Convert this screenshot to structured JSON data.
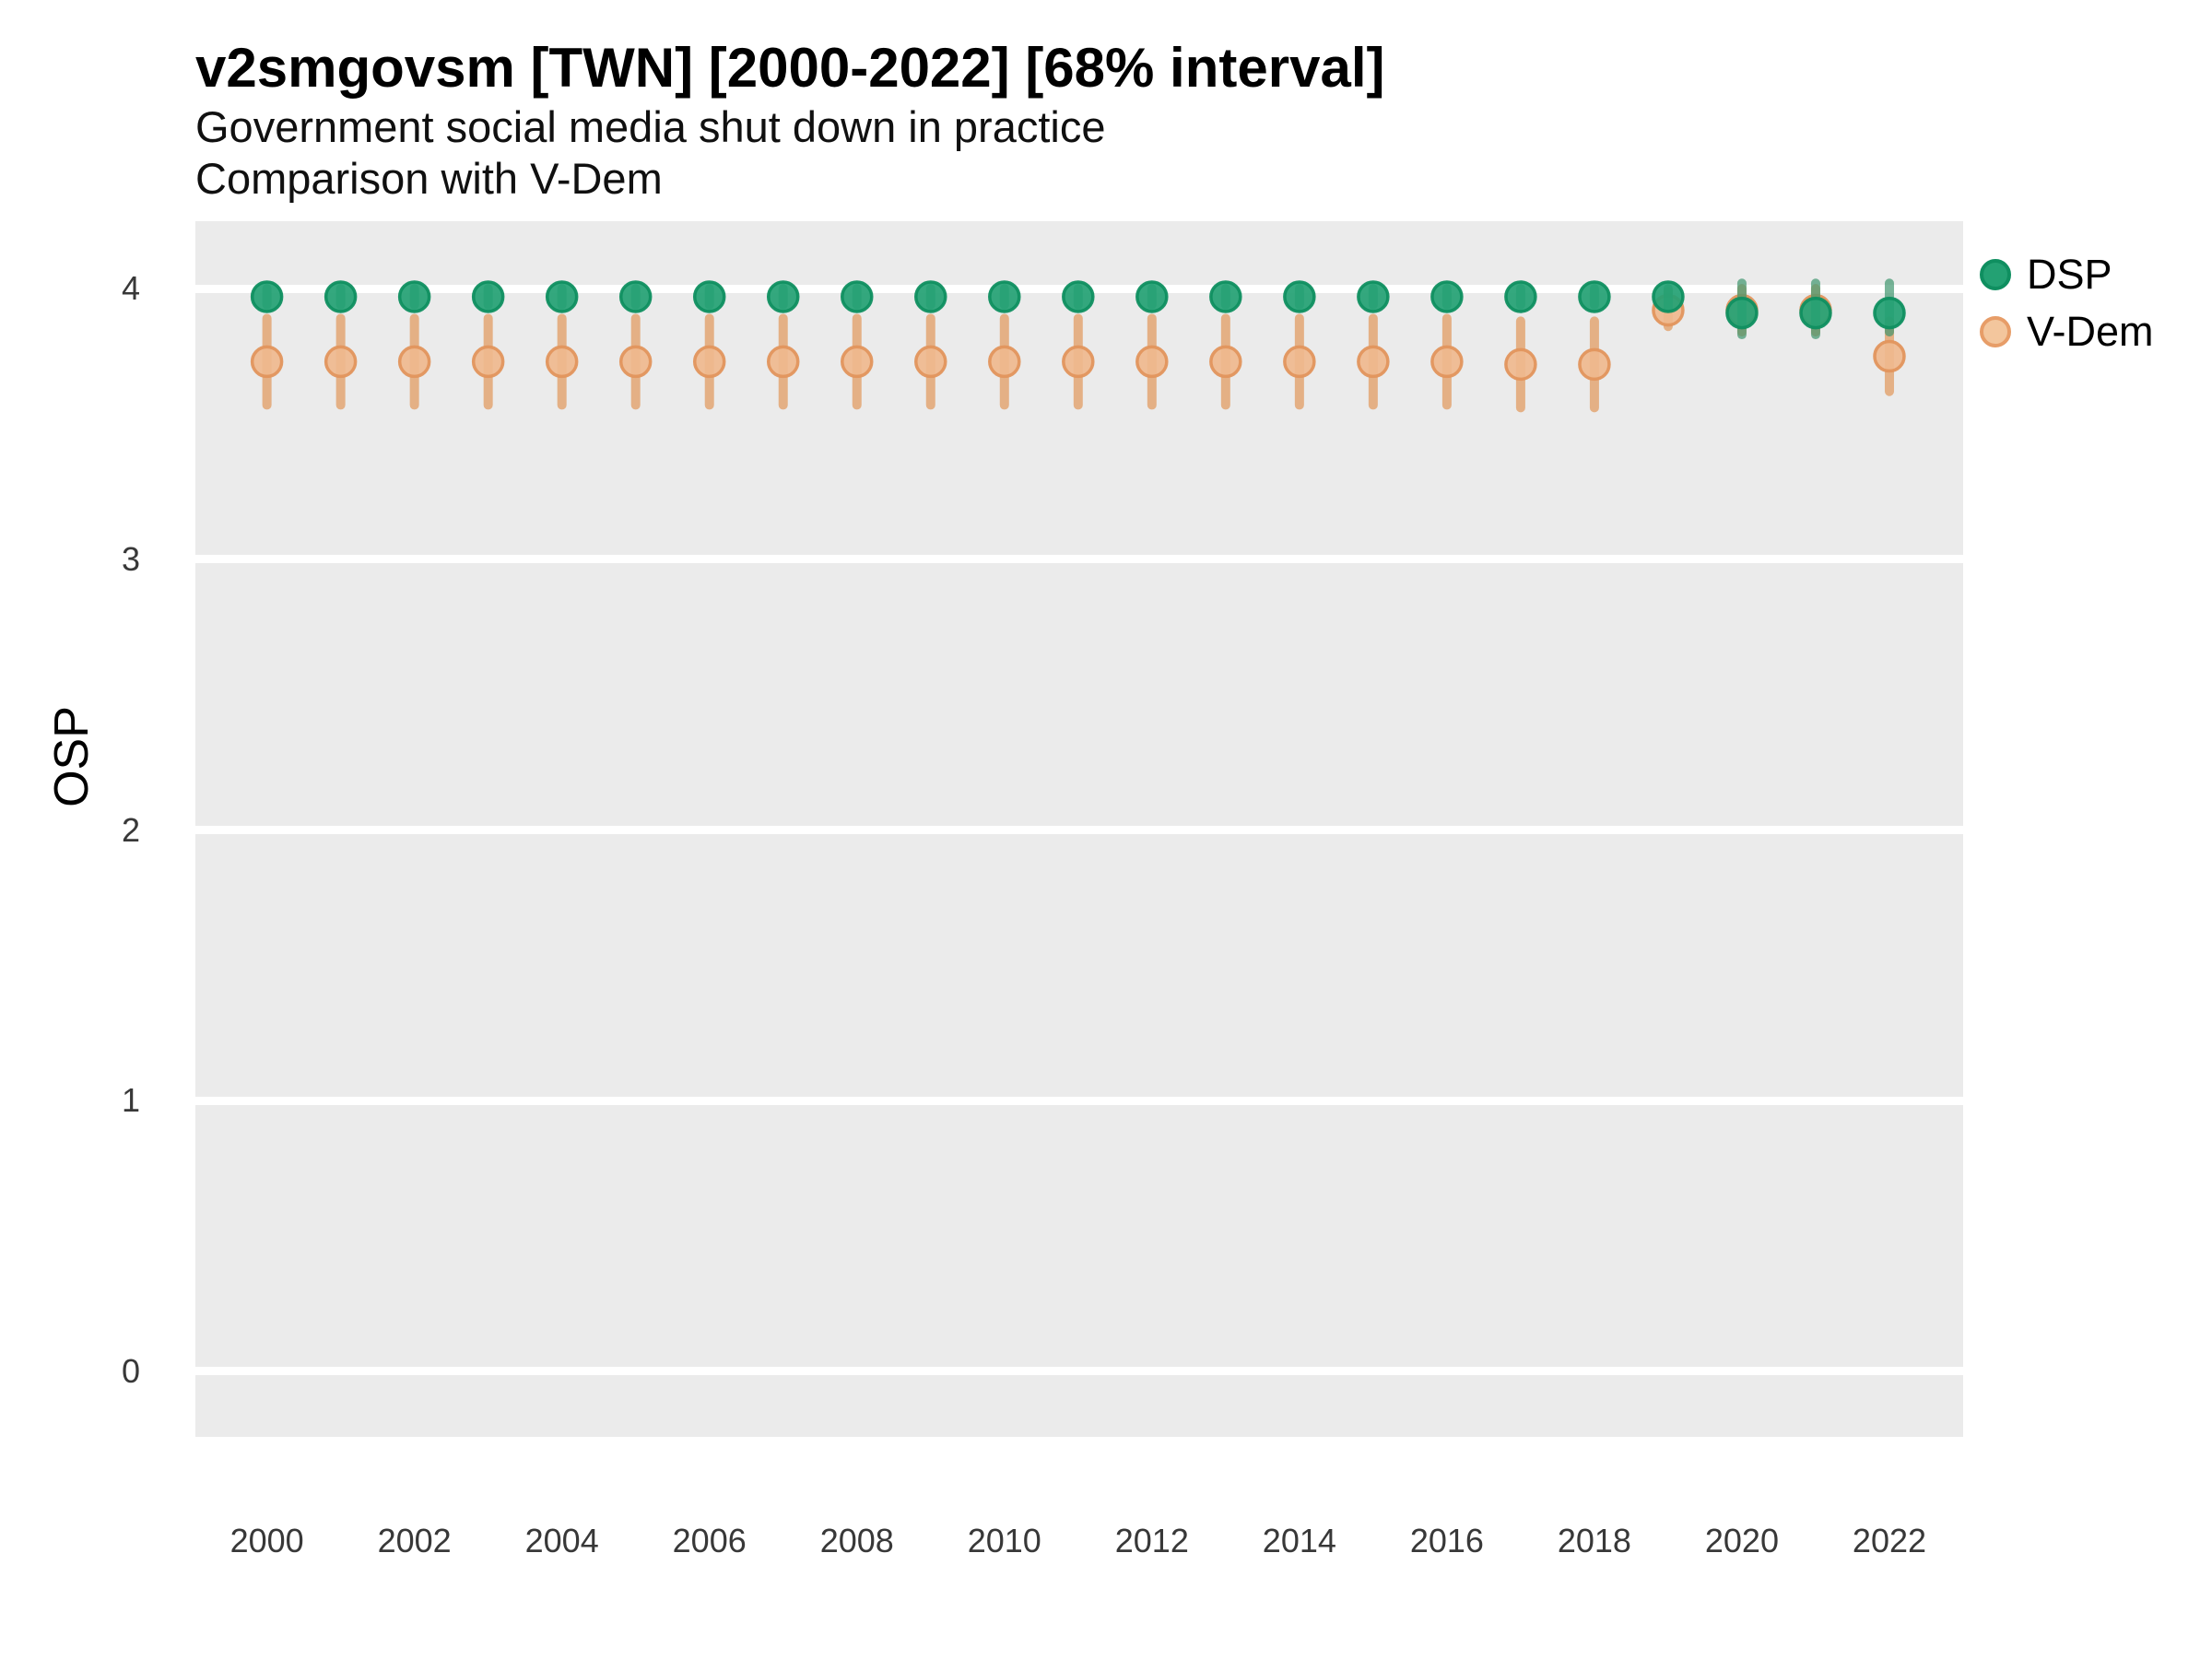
{
  "chart_data": {
    "type": "scatter",
    "title": "v2smgovsm [TWN] [2000-2022] [68% interval]",
    "subtitle1": "Government social media shut down in practice",
    "subtitle2": "Comparison with V-Dem",
    "ylabel": "OSP",
    "xlim": [
      1999.03,
      2023.0
    ],
    "ylim": [
      -0.242,
      4.249
    ],
    "x_ticks": [
      2000,
      2002,
      2004,
      2006,
      2008,
      2010,
      2012,
      2014,
      2016,
      2018,
      2020,
      2022
    ],
    "y_ticks": [
      4,
      3,
      2,
      1,
      0
    ],
    "grid": "major-horizontal-white-on-gray",
    "panel_background": "#ebebeb",
    "gridline_color": "#ffffff",
    "legend_position": "right",
    "interval_level": "68%",
    "series": [
      {
        "name": "V-Dem",
        "point_fill": "#efb98e",
        "point_stroke": "#e1955d",
        "bar_color": "rgba(226,156,99,0.75)",
        "points": [
          {
            "x": 2000,
            "y": 3.73,
            "lo": 3.57,
            "hi": 3.89
          },
          {
            "x": 2001,
            "y": 3.73,
            "lo": 3.57,
            "hi": 3.89
          },
          {
            "x": 2002,
            "y": 3.73,
            "lo": 3.57,
            "hi": 3.89
          },
          {
            "x": 2003,
            "y": 3.73,
            "lo": 3.57,
            "hi": 3.89
          },
          {
            "x": 2004,
            "y": 3.73,
            "lo": 3.57,
            "hi": 3.89
          },
          {
            "x": 2005,
            "y": 3.73,
            "lo": 3.57,
            "hi": 3.89
          },
          {
            "x": 2006,
            "y": 3.73,
            "lo": 3.57,
            "hi": 3.89
          },
          {
            "x": 2007,
            "y": 3.73,
            "lo": 3.57,
            "hi": 3.89
          },
          {
            "x": 2008,
            "y": 3.73,
            "lo": 3.57,
            "hi": 3.89
          },
          {
            "x": 2009,
            "y": 3.73,
            "lo": 3.57,
            "hi": 3.89
          },
          {
            "x": 2010,
            "y": 3.73,
            "lo": 3.57,
            "hi": 3.89
          },
          {
            "x": 2011,
            "y": 3.73,
            "lo": 3.57,
            "hi": 3.89
          },
          {
            "x": 2012,
            "y": 3.73,
            "lo": 3.57,
            "hi": 3.89
          },
          {
            "x": 2013,
            "y": 3.73,
            "lo": 3.57,
            "hi": 3.89
          },
          {
            "x": 2014,
            "y": 3.73,
            "lo": 3.57,
            "hi": 3.89
          },
          {
            "x": 2015,
            "y": 3.73,
            "lo": 3.57,
            "hi": 3.89
          },
          {
            "x": 2016,
            "y": 3.73,
            "lo": 3.57,
            "hi": 3.89
          },
          {
            "x": 2017,
            "y": 3.72,
            "lo": 3.56,
            "hi": 3.88
          },
          {
            "x": 2018,
            "y": 3.72,
            "lo": 3.56,
            "hi": 3.88
          },
          {
            "x": 2019,
            "y": 3.92,
            "lo": 3.86,
            "hi": 3.99
          },
          {
            "x": 2020,
            "y": 3.92,
            "lo": 3.84,
            "hi": 4.0
          },
          {
            "x": 2021,
            "y": 3.92,
            "lo": 3.84,
            "hi": 4.0
          },
          {
            "x": 2022,
            "y": 3.75,
            "lo": 3.62,
            "hi": 3.88
          }
        ]
      },
      {
        "name": "DSP",
        "point_fill": "#23a173",
        "point_stroke": "#0f8f60",
        "bar_color": "rgba(62,150,110,0.7)",
        "points": [
          {
            "x": 2000,
            "y": 3.97,
            "lo": 3.94,
            "hi": 4.0
          },
          {
            "x": 2001,
            "y": 3.97,
            "lo": 3.94,
            "hi": 4.0
          },
          {
            "x": 2002,
            "y": 3.97,
            "lo": 3.94,
            "hi": 4.0
          },
          {
            "x": 2003,
            "y": 3.97,
            "lo": 3.94,
            "hi": 4.0
          },
          {
            "x": 2004,
            "y": 3.97,
            "lo": 3.94,
            "hi": 4.0
          },
          {
            "x": 2005,
            "y": 3.97,
            "lo": 3.94,
            "hi": 4.0
          },
          {
            "x": 2006,
            "y": 3.97,
            "lo": 3.94,
            "hi": 4.0
          },
          {
            "x": 2007,
            "y": 3.97,
            "lo": 3.94,
            "hi": 4.0
          },
          {
            "x": 2008,
            "y": 3.97,
            "lo": 3.94,
            "hi": 4.0
          },
          {
            "x": 2009,
            "y": 3.97,
            "lo": 3.94,
            "hi": 4.0
          },
          {
            "x": 2010,
            "y": 3.97,
            "lo": 3.94,
            "hi": 4.0
          },
          {
            "x": 2011,
            "y": 3.97,
            "lo": 3.94,
            "hi": 4.0
          },
          {
            "x": 2012,
            "y": 3.97,
            "lo": 3.94,
            "hi": 4.0
          },
          {
            "x": 2013,
            "y": 3.97,
            "lo": 3.94,
            "hi": 4.0
          },
          {
            "x": 2014,
            "y": 3.97,
            "lo": 3.94,
            "hi": 4.0
          },
          {
            "x": 2015,
            "y": 3.97,
            "lo": 3.94,
            "hi": 4.0
          },
          {
            "x": 2016,
            "y": 3.97,
            "lo": 3.94,
            "hi": 4.0
          },
          {
            "x": 2017,
            "y": 3.97,
            "lo": 3.94,
            "hi": 4.0
          },
          {
            "x": 2018,
            "y": 3.97,
            "lo": 3.94,
            "hi": 4.0
          },
          {
            "x": 2019,
            "y": 3.97,
            "lo": 3.93,
            "hi": 4.0
          },
          {
            "x": 2020,
            "y": 3.91,
            "lo": 3.83,
            "hi": 4.02
          },
          {
            "x": 2021,
            "y": 3.91,
            "lo": 3.83,
            "hi": 4.02
          },
          {
            "x": 2022,
            "y": 3.91,
            "lo": 3.84,
            "hi": 4.02
          }
        ]
      }
    ],
    "legend": {
      "items": [
        {
          "label": "DSP",
          "fill": "#23a173",
          "stroke": "#0f8f60"
        },
        {
          "label": "V-Dem",
          "fill": "#f3c69d",
          "stroke": "#e79d68"
        }
      ]
    }
  }
}
